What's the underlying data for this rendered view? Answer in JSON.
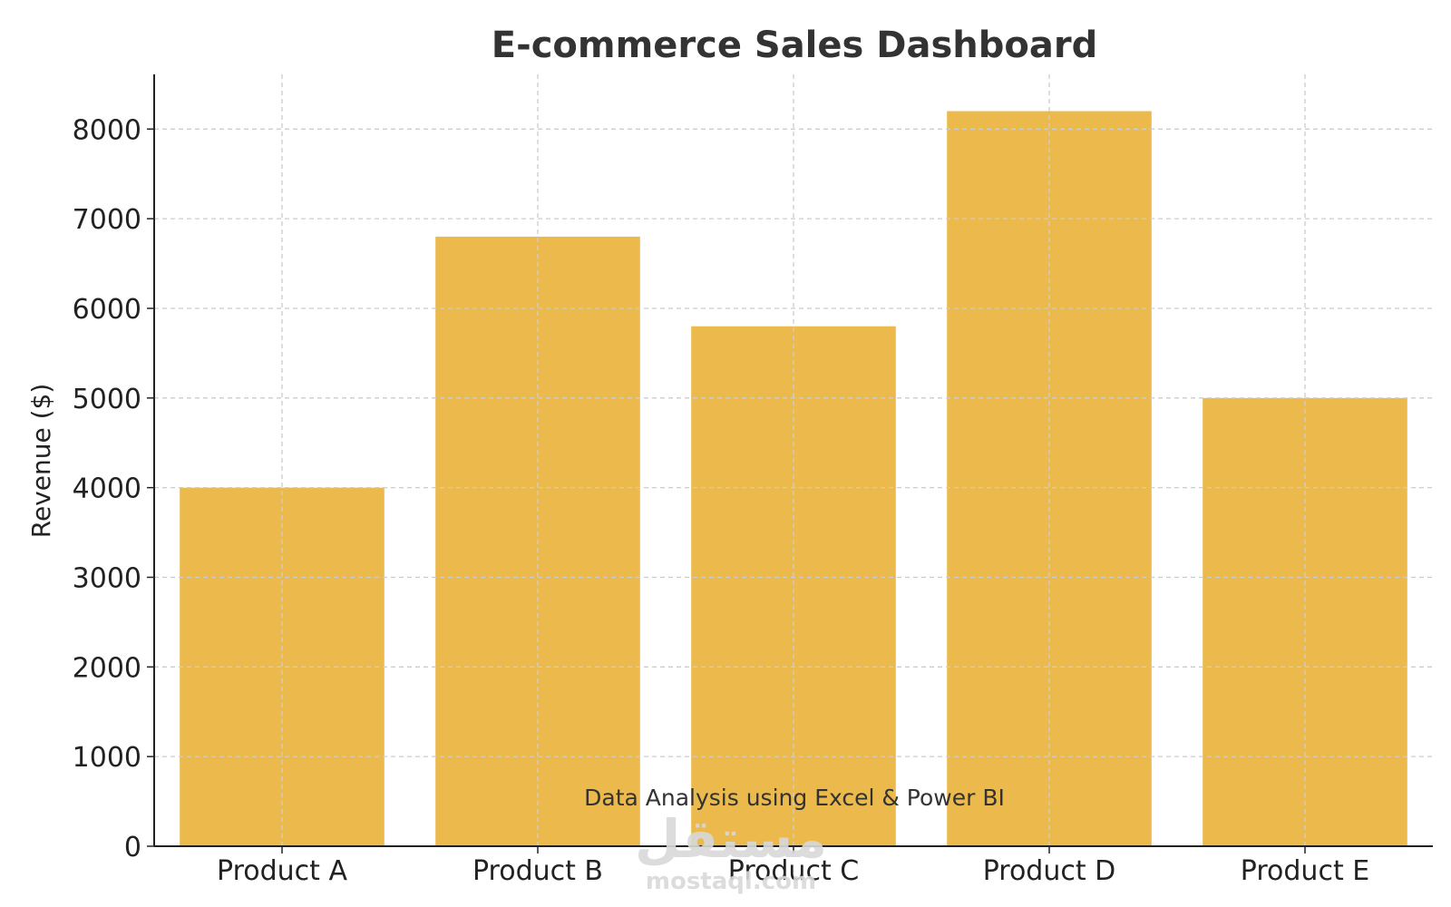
{
  "chart_data": {
    "type": "bar",
    "title": "E-commerce Sales Dashboard",
    "xlabel": "",
    "ylabel": "Revenue ($)",
    "categories": [
      "Product A",
      "Product B",
      "Product C",
      "Product D",
      "Product E"
    ],
    "values": [
      4000,
      6800,
      5800,
      8200,
      5000
    ],
    "ylim": [
      0,
      8610
    ],
    "yticks": [
      0,
      1000,
      2000,
      3000,
      4000,
      5000,
      6000,
      7000,
      8000
    ],
    "grid": true,
    "legend": "none",
    "annotation": "Data Analysis using Excel & Power BI"
  },
  "watermark": {
    "arabic": "مستقل",
    "latin": "mostaql.com"
  },
  "colors": {
    "bar": "#ebb94c",
    "text": "#333333",
    "grid": "#cccccc",
    "axis": "#222222",
    "watermark": "#d9d9d9"
  }
}
